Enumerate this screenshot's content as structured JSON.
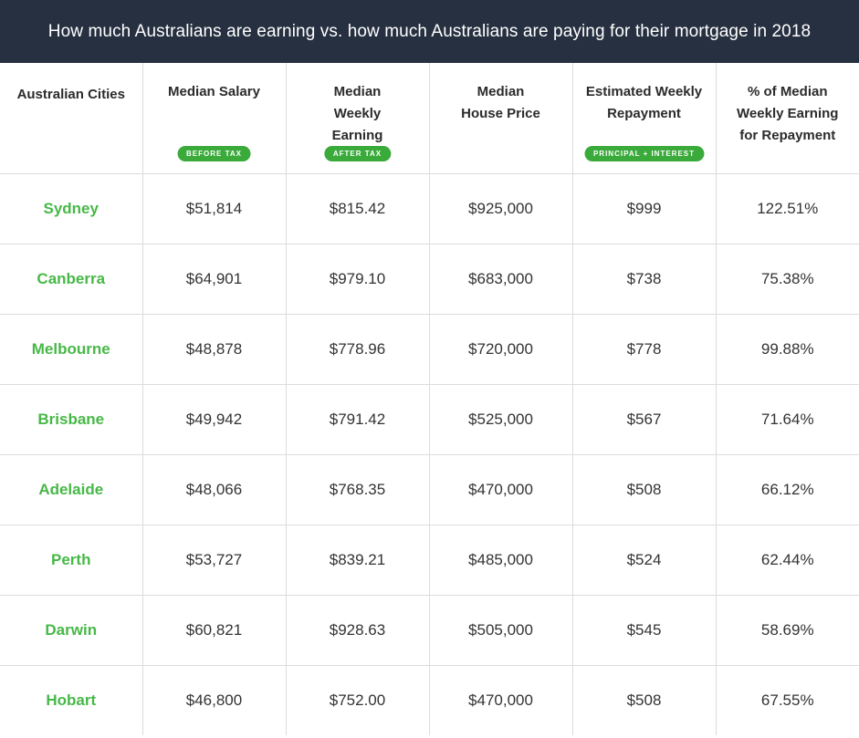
{
  "title": "How much Australians are earning vs. how much Australians are paying for their mortgage in 2018",
  "colors": {
    "header_bg": "#263040",
    "accent_green": "#47b847",
    "pill_green": "#3aaa3a"
  },
  "columns": [
    {
      "label": "Australian Cities",
      "badge": ""
    },
    {
      "label": "Median Salary",
      "badge": "BEFORE TAX"
    },
    {
      "label": "Median Weekly Earning",
      "badge": "AFTER TAX"
    },
    {
      "label": "Median House Price",
      "badge": ""
    },
    {
      "label": "Estimated Weekly Repayment",
      "badge": "PRINCIPAL + INTEREST"
    },
    {
      "label": "% of Median Weekly Earning for Repayment",
      "badge": ""
    }
  ],
  "rows": [
    [
      "Sydney",
      "$51,814",
      "$815.42",
      "$925,000",
      "$999",
      "122.51%"
    ],
    [
      "Canberra",
      "$64,901",
      "$979.10",
      "$683,000",
      "$738",
      "75.38%"
    ],
    [
      "Melbourne",
      "$48,878",
      "$778.96",
      "$720,000",
      "$778",
      "99.88%"
    ],
    [
      "Brisbane",
      "$49,942",
      "$791.42",
      "$525,000",
      "$567",
      "71.64%"
    ],
    [
      "Adelaide",
      "$48,066",
      "$768.35",
      "$470,000",
      "$508",
      "66.12%"
    ],
    [
      "Perth",
      "$53,727",
      "$839.21",
      "$485,000",
      "$524",
      "62.44%"
    ],
    [
      "Darwin",
      "$60,821",
      "$928.63",
      "$505,000",
      "$545",
      "58.69%"
    ],
    [
      "Hobart",
      "$46,800",
      "$752.00",
      "$470,000",
      "$508",
      "67.55%"
    ]
  ]
}
